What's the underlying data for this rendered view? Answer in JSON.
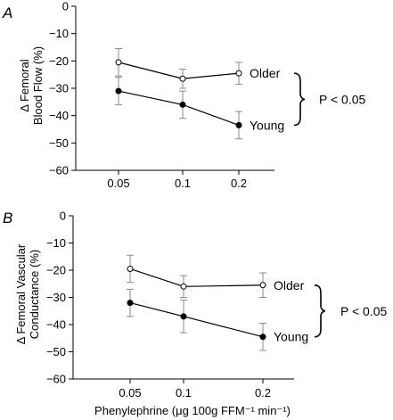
{
  "chart_data": [
    {
      "type": "line",
      "panel": "A",
      "ylabel_lines": [
        "Δ Femoral",
        "Blood Flow (%)"
      ],
      "xlabel": "",
      "categories": [
        "0.05",
        "0.1",
        "0.2"
      ],
      "ylim": [
        -60,
        0
      ],
      "yticks": [
        "0",
        "−10",
        "−20",
        "−30",
        "−40",
        "−50",
        "−60"
      ],
      "grid": false,
      "series": [
        {
          "name": "Older",
          "marker": "open-circle",
          "values": [
            -20.5,
            -26.5,
            -24.5
          ],
          "error": [
            5,
            3.5,
            4
          ]
        },
        {
          "name": "Young",
          "marker": "filled-circle",
          "values": [
            -31,
            -36,
            -43.5
          ],
          "error": [
            5,
            5,
            5
          ]
        }
      ],
      "annotation": "P < 0.05"
    },
    {
      "type": "line",
      "panel": "B",
      "ylabel_lines": [
        "Δ Femoral Vascular",
        "Conductance (%)"
      ],
      "xlabel": "Phenylephrine (μg 100g FFM⁻¹ min⁻¹)",
      "categories": [
        "0.05",
        "0.1",
        "0.2"
      ],
      "ylim": [
        -60,
        0
      ],
      "yticks": [
        "0",
        "−10",
        "−20",
        "−30",
        "−40",
        "−50",
        "−60"
      ],
      "grid": false,
      "series": [
        {
          "name": "Older",
          "marker": "open-circle",
          "values": [
            -19.5,
            -26,
            -25.5
          ],
          "error": [
            5,
            4,
            4.5
          ]
        },
        {
          "name": "Young",
          "marker": "filled-circle",
          "values": [
            -32,
            -37,
            -44.5
          ],
          "error": [
            5,
            6,
            5
          ]
        }
      ],
      "annotation": "P < 0.05"
    }
  ]
}
